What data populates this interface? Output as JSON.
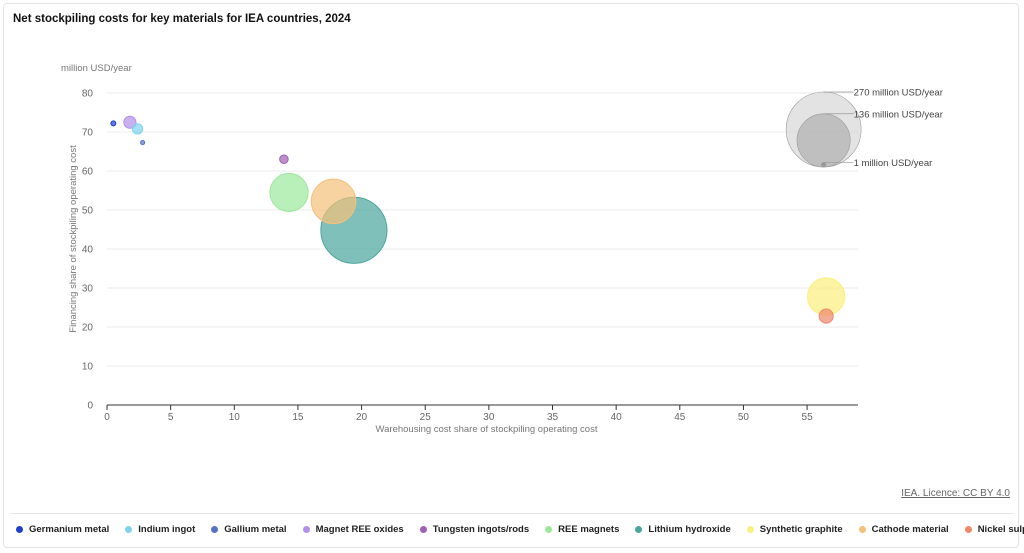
{
  "title": "Net stockpiling costs for key materials for IEA countries, 2024",
  "licence": "IEA. Licence: CC BY 4.0",
  "chart_data": {
    "type": "scatter",
    "unit_label": "million USD/year",
    "xlabel": "Warehousing cost share of stockpiling operating cost",
    "ylabel": "Financing share of stockpiling operating cost",
    "xlim": [
      0,
      59
    ],
    "ylim": [
      0,
      80
    ],
    "x_ticks": [
      "0",
      "5",
      "10",
      "15",
      "20",
      "25",
      "30",
      "35",
      "40",
      "45",
      "50",
      "55"
    ],
    "y_ticks": [
      "0",
      "10",
      "20",
      "30",
      "40",
      "50",
      "60",
      "70",
      "80"
    ],
    "size_legend": [
      {
        "label": "270 million USD/year",
        "value": 270
      },
      {
        "label": "136 million USD/year",
        "value": 136
      },
      {
        "label": "1 million USD/year",
        "value": 1
      }
    ],
    "series": [
      {
        "name": "Germanium metal",
        "color": "#1f3fcc",
        "x": 0.5,
        "y": 72.2,
        "size": 1.2
      },
      {
        "name": "Indium ingot",
        "color": "#7fd3f0",
        "x": 2.4,
        "y": 70.8,
        "size": 5
      },
      {
        "name": "Gallium metal",
        "color": "#5572c8",
        "x": 2.8,
        "y": 67.3,
        "size": 0.8
      },
      {
        "name": "Magnet REE oxides",
        "color": "#b48ee8",
        "x": 1.8,
        "y": 72.5,
        "size": 7
      },
      {
        "name": "Tungsten ingots/rods",
        "color": "#a05fb4",
        "x": 13.9,
        "y": 63.0,
        "size": 3.5
      },
      {
        "name": "REE magnets",
        "color": "#9be89b",
        "x": 14.3,
        "y": 54.5,
        "size": 70
      },
      {
        "name": "Lithium hydroxide",
        "color": "#4aa59c",
        "x": 19.4,
        "y": 44.8,
        "size": 210
      },
      {
        "name": "Synthetic graphite",
        "color": "#fbf07e",
        "x": 56.5,
        "y": 27.8,
        "size": 67
      },
      {
        "name": "Cathode material",
        "color": "#f5c07a",
        "x": 17.8,
        "y": 52.2,
        "size": 95
      },
      {
        "name": "Nickel sulphate",
        "color": "#f0876a",
        "x": 56.5,
        "y": 22.8,
        "size": 9.5
      }
    ]
  }
}
